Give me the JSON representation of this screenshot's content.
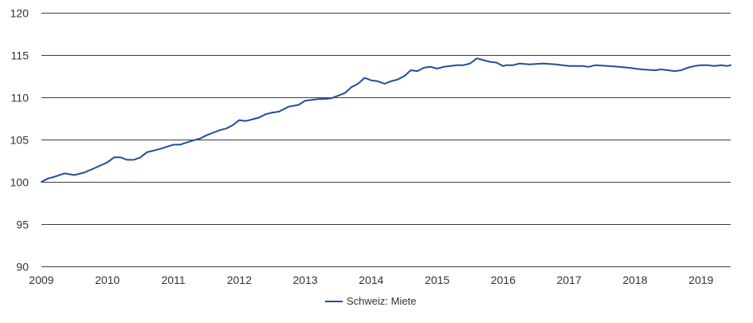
{
  "chart_data": {
    "type": "line",
    "title": "",
    "xlabel": "",
    "ylabel": "",
    "x_ticks": [
      "2009",
      "2010",
      "2011",
      "2012",
      "2013",
      "2014",
      "2015",
      "2016",
      "2017",
      "2018",
      "2019"
    ],
    "y_ticks": [
      "90",
      "95",
      "100",
      "105",
      "110",
      "115",
      "120"
    ],
    "xlim": [
      2009.0,
      2019.45
    ],
    "ylim": [
      90,
      120
    ],
    "grid": "horizontal",
    "legend_position": "bottom-center",
    "series": [
      {
        "name": "Schweiz: Miete",
        "color": "#1f4e9c",
        "x": [
          2009.0,
          2009.1,
          2009.2,
          2009.35,
          2009.5,
          2009.65,
          2009.8,
          2010.0,
          2010.1,
          2010.2,
          2010.3,
          2010.4,
          2010.5,
          2010.6,
          2010.7,
          2010.8,
          2011.0,
          2011.1,
          2011.3,
          2011.4,
          2011.5,
          2011.6,
          2011.7,
          2011.8,
          2011.9,
          2012.0,
          2012.1,
          2012.2,
          2012.3,
          2012.4,
          2012.5,
          2012.6,
          2012.75,
          2012.9,
          2013.0,
          2013.1,
          2013.2,
          2013.3,
          2013.4,
          2013.5,
          2013.6,
          2013.7,
          2013.8,
          2013.9,
          2014.0,
          2014.1,
          2014.2,
          2014.3,
          2014.4,
          2014.5,
          2014.6,
          2014.7,
          2014.8,
          2014.9,
          2015.0,
          2015.1,
          2015.2,
          2015.3,
          2015.4,
          2015.5,
          2015.6,
          2015.7,
          2015.8,
          2015.9,
          2016.0,
          2016.05,
          2016.15,
          2016.25,
          2016.4,
          2016.6,
          2016.8,
          2016.9,
          2017.0,
          2017.1,
          2017.2,
          2017.3,
          2017.4,
          2017.6,
          2017.75,
          2017.9,
          2018.0,
          2018.1,
          2018.3,
          2018.4,
          2018.5,
          2018.6,
          2018.7,
          2018.8,
          2018.9,
          2019.0,
          2019.1,
          2019.2,
          2019.3,
          2019.4,
          2019.45
        ],
        "y": [
          100.0,
          100.4,
          100.6,
          101.0,
          100.8,
          101.1,
          101.6,
          102.3,
          102.9,
          102.9,
          102.6,
          102.6,
          102.9,
          103.5,
          103.7,
          103.9,
          104.4,
          104.4,
          104.9,
          105.1,
          105.5,
          105.8,
          106.1,
          106.3,
          106.7,
          107.3,
          107.2,
          107.4,
          107.6,
          108.0,
          108.2,
          108.3,
          108.9,
          109.1,
          109.6,
          109.7,
          109.8,
          109.8,
          109.9,
          110.2,
          110.5,
          111.2,
          111.6,
          112.3,
          112.0,
          111.9,
          111.6,
          111.9,
          112.1,
          112.5,
          113.2,
          113.1,
          113.5,
          113.6,
          113.4,
          113.6,
          113.7,
          113.8,
          113.8,
          114.0,
          114.6,
          114.4,
          114.2,
          114.1,
          113.7,
          113.8,
          113.8,
          114.0,
          113.9,
          114.0,
          113.9,
          113.8,
          113.7,
          113.7,
          113.7,
          113.6,
          113.8,
          113.7,
          113.6,
          113.5,
          113.4,
          113.3,
          113.2,
          113.3,
          113.2,
          113.1,
          113.2,
          113.5,
          113.7,
          113.8,
          113.8,
          113.7,
          113.8,
          113.7,
          113.8
        ]
      }
    ]
  }
}
